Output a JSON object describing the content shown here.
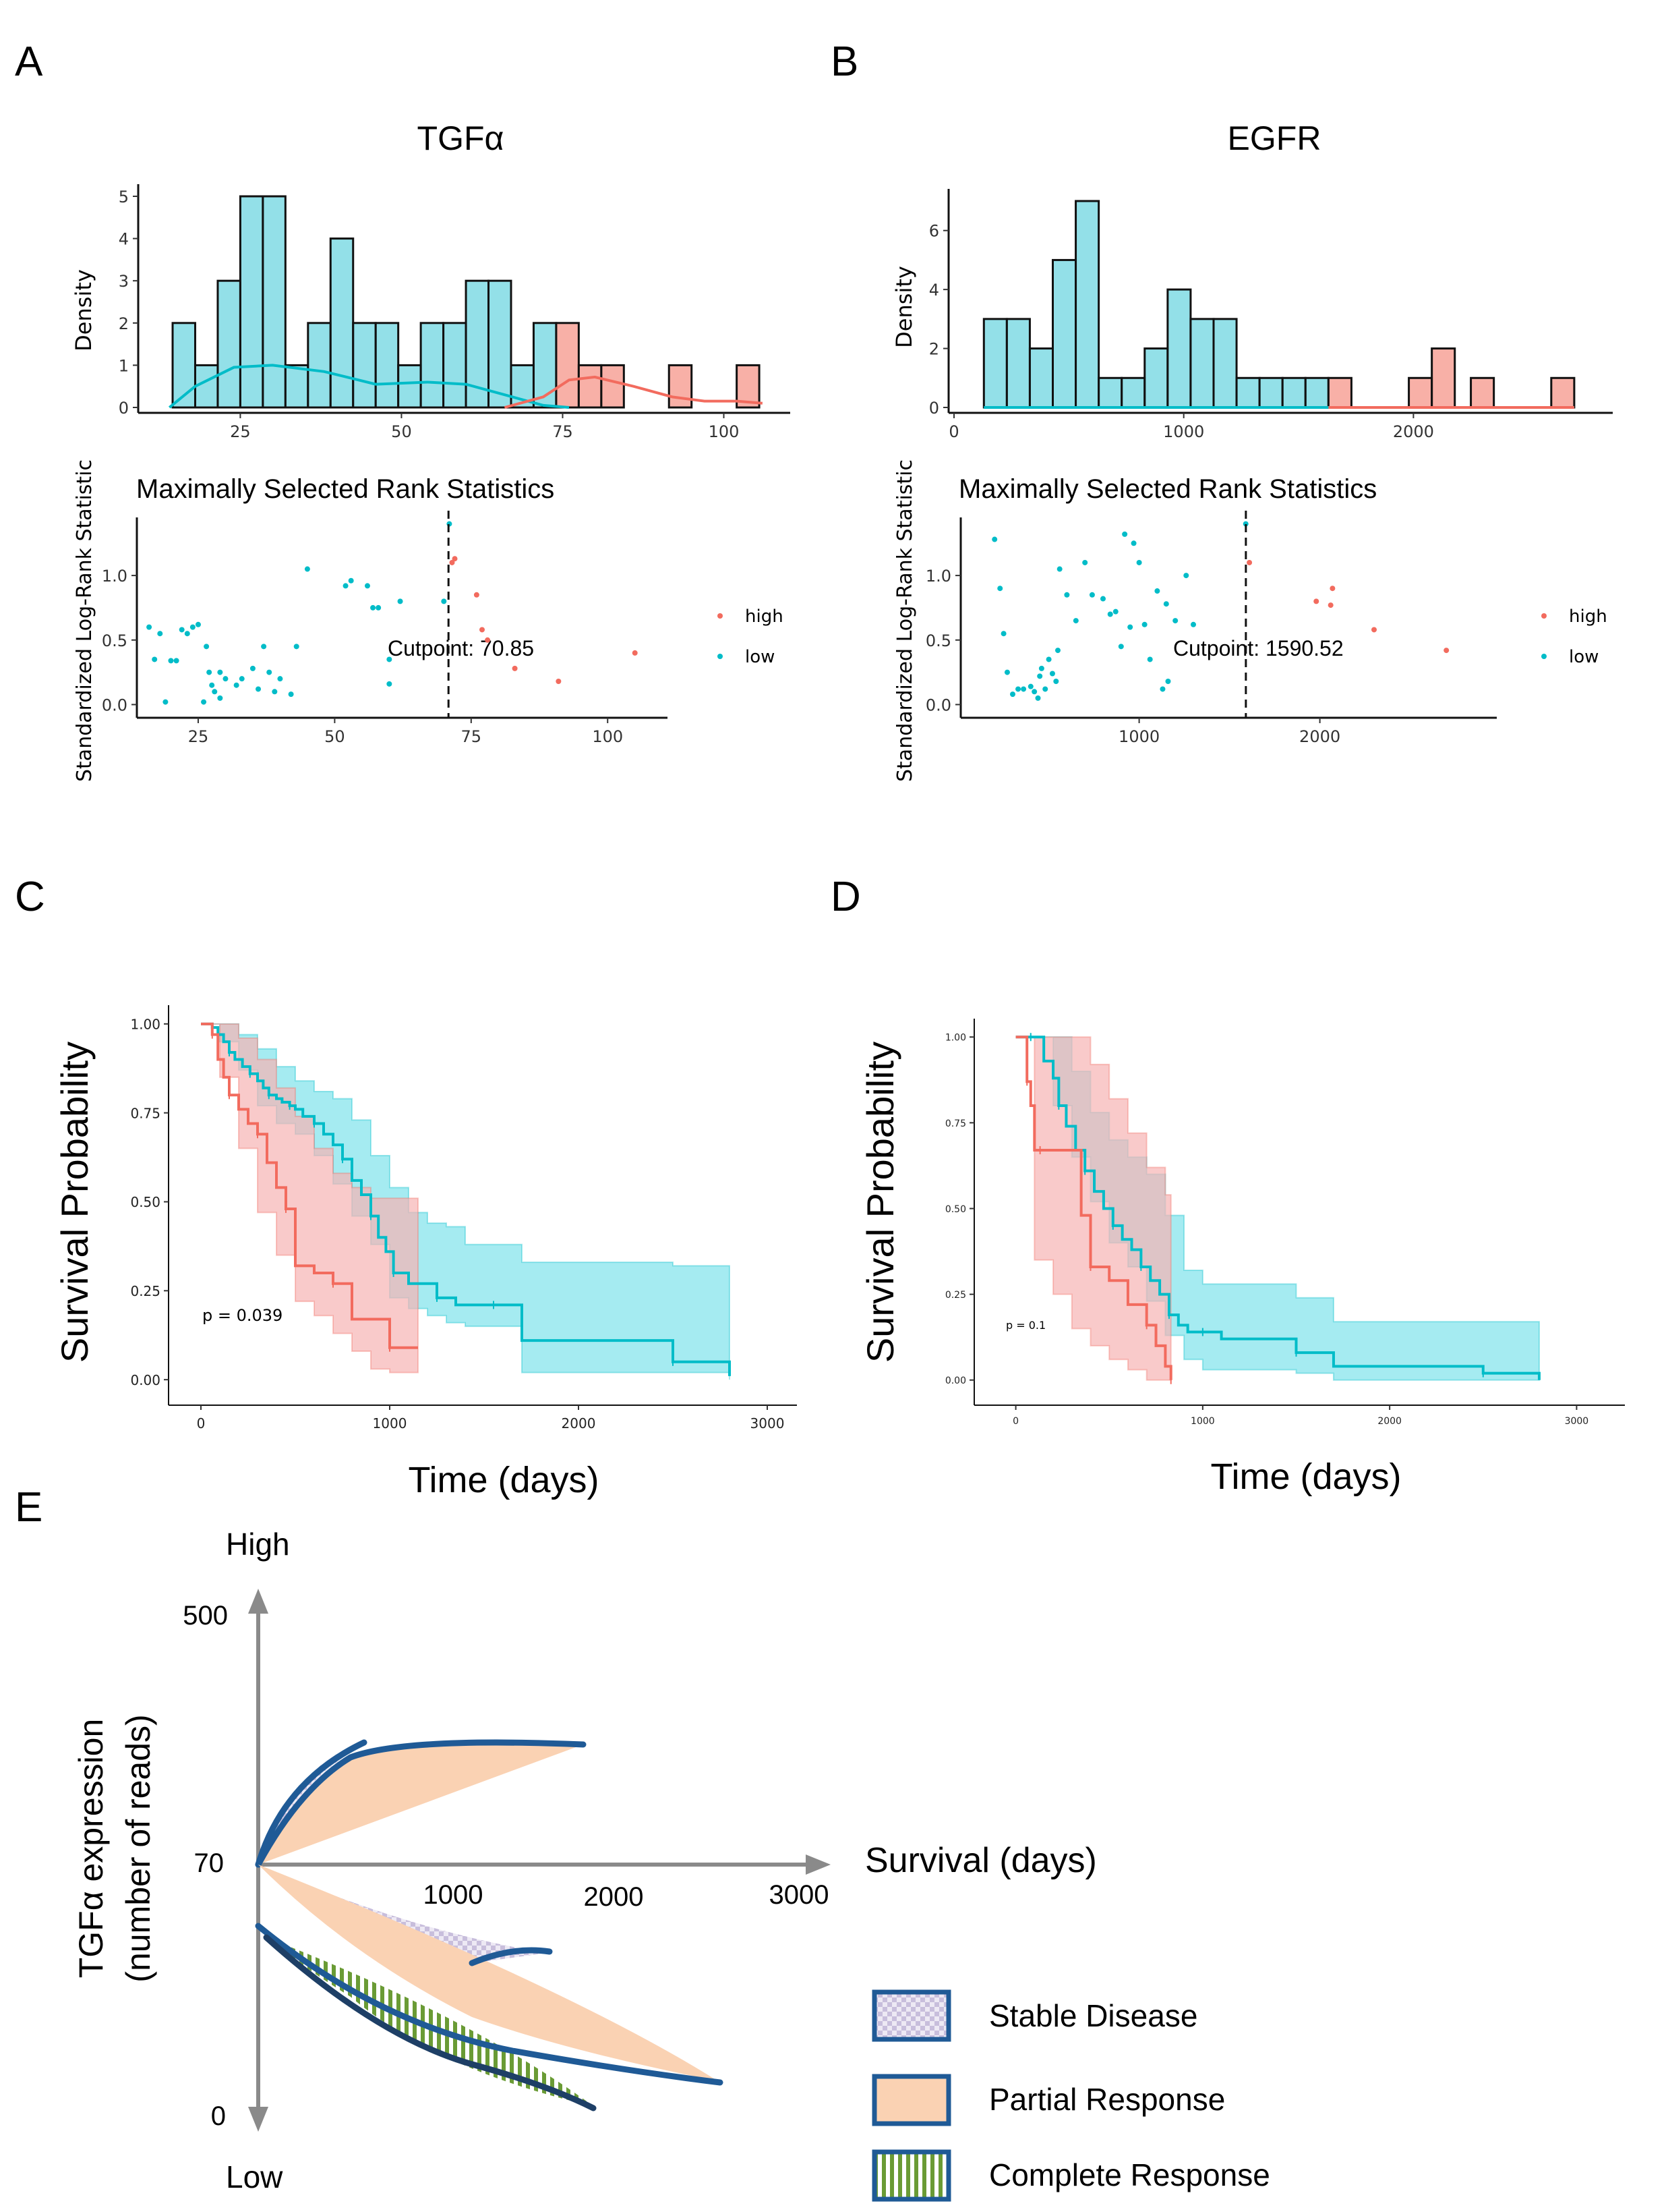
{
  "panel_labels": {
    "A": "A",
    "B": "B",
    "C": "C",
    "D": "D",
    "E": "E"
  },
  "colors": {
    "low": "#00bcc8",
    "low_fill": "#6fd5e0",
    "high": "#f26b5e",
    "high_fill": "#f5968a",
    "ci_low": "#8ee6ee",
    "ci_high": "#f7b4b4",
    "curve": "#1f5a96",
    "partial": "#fad2b3",
    "stable_checker": "#c8bedc",
    "complete_stripe": "#6a9b35"
  },
  "chart_data": [
    {
      "panel": "A",
      "type": "bar",
      "title": "TGFα",
      "ylabel": "Density",
      "xlim": [
        10,
        108
      ],
      "ylim": [
        0,
        5
      ],
      "xticks": [
        25,
        50,
        75,
        100
      ],
      "yticks": [
        0,
        1,
        2,
        3,
        4,
        5
      ],
      "bins_low": [
        [
          14.5,
          18,
          2
        ],
        [
          18,
          21.5,
          1
        ],
        [
          21.5,
          25,
          3
        ],
        [
          25,
          28.5,
          5
        ],
        [
          28.5,
          32,
          5
        ],
        [
          32,
          35.5,
          1
        ],
        [
          35.5,
          39,
          2
        ],
        [
          39,
          42.5,
          4
        ],
        [
          42.5,
          46,
          2
        ],
        [
          46,
          49.5,
          2
        ],
        [
          49.5,
          53,
          1
        ],
        [
          53,
          56.5,
          2
        ],
        [
          56.5,
          60,
          2
        ],
        [
          60,
          63.5,
          3
        ],
        [
          63.5,
          67,
          3
        ],
        [
          67,
          70.5,
          1
        ],
        [
          70.5,
          74,
          2
        ]
      ],
      "bins_high": [
        [
          74,
          77.5,
          2
        ],
        [
          77.5,
          81,
          1
        ],
        [
          81,
          84.5,
          1
        ],
        [
          91.5,
          95,
          1
        ],
        [
          102,
          105.5,
          1
        ]
      ],
      "density_low": [
        [
          14,
          0
        ],
        [
          18,
          0.5
        ],
        [
          24,
          0.95
        ],
        [
          30,
          1.0
        ],
        [
          38,
          0.85
        ],
        [
          46,
          0.55
        ],
        [
          54,
          0.6
        ],
        [
          60,
          0.55
        ],
        [
          66,
          0.3
        ],
        [
          72,
          0.05
        ],
        [
          76,
          0
        ]
      ],
      "density_high": [
        [
          66,
          0
        ],
        [
          72,
          0.25
        ],
        [
          76,
          0.65
        ],
        [
          80,
          0.72
        ],
        [
          86,
          0.5
        ],
        [
          92,
          0.25
        ],
        [
          97,
          0.15
        ],
        [
          102,
          0.15
        ],
        [
          106,
          0.1
        ]
      ]
    },
    {
      "panel": "A",
      "type": "scatter",
      "title": "Maximally Selected Rank Statistics",
      "ylabel": "Standardized Log-Rank Statistic",
      "xlim": [
        15,
        108
      ],
      "ylim": [
        -0.05,
        1.45
      ],
      "xticks": [
        25,
        50,
        75,
        100
      ],
      "yticks": [
        "0.0",
        "0.5",
        "1.0"
      ],
      "cutpoint": 70.85,
      "cutpoint_label": "Cutpoint: 70.85",
      "legend": [
        "high",
        "low"
      ],
      "low": [
        [
          16,
          0.6
        ],
        [
          17,
          0.35
        ],
        [
          18,
          0.55
        ],
        [
          19,
          0.02
        ],
        [
          20,
          0.34
        ],
        [
          21,
          0.34
        ],
        [
          22,
          0.58
        ],
        [
          23,
          0.55
        ],
        [
          24,
          0.6
        ],
        [
          25,
          0.62
        ],
        [
          26,
          0.02
        ],
        [
          26.5,
          0.45
        ],
        [
          27,
          0.25
        ],
        [
          27.5,
          0.15
        ],
        [
          28,
          0.1
        ],
        [
          29,
          0.05
        ],
        [
          29,
          0.25
        ],
        [
          30,
          0.2
        ],
        [
          32,
          0.15
        ],
        [
          33,
          0.2
        ],
        [
          35,
          0.28
        ],
        [
          36,
          0.12
        ],
        [
          37,
          0.45
        ],
        [
          38,
          0.25
        ],
        [
          39,
          0.1
        ],
        [
          40,
          0.2
        ],
        [
          42,
          0.08
        ],
        [
          43,
          0.45
        ],
        [
          45,
          1.05
        ],
        [
          52,
          0.92
        ],
        [
          53,
          0.96
        ],
        [
          56,
          0.92
        ],
        [
          57,
          0.75
        ],
        [
          58,
          0.75
        ],
        [
          60,
          0.35
        ],
        [
          60,
          0.16
        ],
        [
          62,
          0.8
        ],
        [
          70,
          0.8
        ],
        [
          71,
          1.4
        ]
      ],
      "high": [
        [
          71.5,
          1.1
        ],
        [
          72,
          1.13
        ],
        [
          76,
          0.85
        ],
        [
          77,
          0.58
        ],
        [
          78,
          0.5
        ],
        [
          83,
          0.28
        ],
        [
          91,
          0.18
        ],
        [
          105,
          0.4
        ]
      ]
    },
    {
      "panel": "B",
      "type": "bar",
      "title": "EGFR",
      "ylabel": "Density",
      "xlim": [
        0,
        2850
      ],
      "ylim": [
        0,
        7
      ],
      "xticks": [
        0,
        1000,
        2000
      ],
      "yticks": [
        0,
        2,
        4,
        6
      ],
      "bins_low": [
        [
          130,
          230,
          3
        ],
        [
          230,
          330,
          3
        ],
        [
          330,
          430,
          2
        ],
        [
          430,
          530,
          5
        ],
        [
          530,
          630,
          7
        ],
        [
          630,
          730,
          1
        ],
        [
          730,
          830,
          1
        ],
        [
          830,
          930,
          2
        ],
        [
          930,
          1030,
          4
        ],
        [
          1030,
          1130,
          3
        ],
        [
          1130,
          1230,
          3
        ],
        [
          1230,
          1330,
          1
        ],
        [
          1330,
          1430,
          1
        ],
        [
          1430,
          1530,
          1
        ],
        [
          1530,
          1630,
          1
        ]
      ],
      "bins_high": [
        [
          1630,
          1730,
          1
        ],
        [
          1980,
          2080,
          1
        ],
        [
          2080,
          2180,
          2
        ],
        [
          2250,
          2350,
          1
        ],
        [
          2600,
          2700,
          1
        ]
      ],
      "density_low": [
        [
          130,
          0
        ],
        [
          2700,
          0
        ]
      ],
      "density_high": [
        [
          1630,
          0
        ],
        [
          2700,
          0
        ]
      ]
    },
    {
      "panel": "B",
      "type": "scatter",
      "title": "Maximally Selected Rank Statistics",
      "ylabel": "Standardized Log-Rank Statistic",
      "xlim": [
        50,
        2800
      ],
      "ylim": [
        -0.05,
        1.45
      ],
      "xticks": [
        1000,
        2000
      ],
      "yticks": [
        "0.0",
        "0.5",
        "1.0"
      ],
      "cutpoint": 1590.52,
      "cutpoint_label": "Cutpoint: 1590.52",
      "legend": [
        "high",
        "low"
      ],
      "low": [
        [
          200,
          1.28
        ],
        [
          230,
          0.9
        ],
        [
          250,
          0.55
        ],
        [
          270,
          0.25
        ],
        [
          300,
          0.08
        ],
        [
          330,
          0.12
        ],
        [
          360,
          0.12
        ],
        [
          400,
          0.14
        ],
        [
          420,
          0.1
        ],
        [
          440,
          0.05
        ],
        [
          450,
          0.22
        ],
        [
          460,
          0.28
        ],
        [
          480,
          0.12
        ],
        [
          500,
          0.35
        ],
        [
          520,
          0.24
        ],
        [
          540,
          0.18
        ],
        [
          550,
          0.42
        ],
        [
          560,
          1.05
        ],
        [
          600,
          0.85
        ],
        [
          650,
          0.65
        ],
        [
          700,
          1.1
        ],
        [
          740,
          0.85
        ],
        [
          800,
          0.82
        ],
        [
          840,
          0.7
        ],
        [
          870,
          0.72
        ],
        [
          900,
          0.45
        ],
        [
          920,
          1.32
        ],
        [
          950,
          0.6
        ],
        [
          970,
          1.25
        ],
        [
          1000,
          1.1
        ],
        [
          1030,
          0.62
        ],
        [
          1060,
          0.35
        ],
        [
          1100,
          0.88
        ],
        [
          1130,
          0.12
        ],
        [
          1150,
          0.78
        ],
        [
          1160,
          0.18
        ],
        [
          1200,
          0.65
        ],
        [
          1260,
          1.0
        ],
        [
          1300,
          0.62
        ],
        [
          1590,
          1.4
        ]
      ],
      "high": [
        [
          1610,
          1.1
        ],
        [
          1980,
          0.8
        ],
        [
          2060,
          0.77
        ],
        [
          2070,
          0.9
        ],
        [
          2300,
          0.58
        ],
        [
          2700,
          0.42
        ]
      ]
    },
    {
      "panel": "C",
      "type": "line",
      "xlabel": "Time (days)",
      "ylabel": "Survival Probability",
      "xlim": [
        -100,
        3150
      ],
      "ylim": [
        -0.03,
        1.03
      ],
      "xticks": [
        0,
        1000,
        2000,
        3000
      ],
      "yticks": [
        "0.00",
        "0.25",
        "0.50",
        "0.75",
        "1.00"
      ],
      "annotation": "p = 0.039",
      "series": [
        {
          "name": "low",
          "x": [
            0,
            60,
            90,
            120,
            150,
            180,
            220,
            260,
            300,
            330,
            360,
            400,
            430,
            470,
            500,
            540,
            600,
            650,
            700,
            750,
            800,
            850,
            900,
            940,
            980,
            1020,
            1100,
            1150,
            1250,
            1350,
            1450,
            1550,
            1700,
            2000,
            2500,
            2800
          ],
          "y": [
            1,
            0.99,
            0.97,
            0.95,
            0.92,
            0.9,
            0.88,
            0.86,
            0.84,
            0.82,
            0.8,
            0.79,
            0.78,
            0.77,
            0.76,
            0.74,
            0.72,
            0.69,
            0.66,
            0.62,
            0.56,
            0.52,
            0.46,
            0.4,
            0.36,
            0.3,
            0.27,
            0.27,
            0.23,
            0.21,
            0.21,
            0.21,
            0.11,
            0.11,
            0.05,
            0.01
          ]
        },
        {
          "name": "high",
          "x": [
            0,
            60,
            90,
            120,
            150,
            200,
            250,
            300,
            350,
            400,
            450,
            500,
            600,
            700,
            800,
            900,
            1000,
            1150
          ],
          "y": [
            1,
            0.97,
            0.9,
            0.85,
            0.8,
            0.76,
            0.72,
            0.69,
            0.61,
            0.54,
            0.48,
            0.32,
            0.3,
            0.27,
            0.17,
            0.17,
            0.09,
            0.09
          ]
        }
      ],
      "ci": [
        {
          "name": "low",
          "x": [
            0,
            100,
            200,
            300,
            400,
            500,
            600,
            700,
            800,
            900,
            1000,
            1100,
            1200,
            1300,
            1400,
            1500,
            1600,
            1700,
            2000,
            2500,
            2800
          ],
          "upper": [
            1,
            1,
            0.97,
            0.93,
            0.88,
            0.84,
            0.81,
            0.79,
            0.73,
            0.63,
            0.54,
            0.47,
            0.44,
            0.43,
            0.38,
            0.38,
            0.38,
            0.33,
            0.33,
            0.32,
            0.32
          ],
          "lower": [
            1,
            0.95,
            0.87,
            0.77,
            0.72,
            0.69,
            0.63,
            0.55,
            0.46,
            0.38,
            0.23,
            0.2,
            0.18,
            0.16,
            0.15,
            0.15,
            0.15,
            0.02,
            0.02,
            0.02,
            0
          ]
        },
        {
          "name": "high",
          "x": [
            0,
            100,
            200,
            300,
            400,
            500,
            600,
            700,
            800,
            900,
            1000,
            1150
          ],
          "upper": [
            1,
            1,
            0.96,
            0.9,
            0.82,
            0.74,
            0.65,
            0.58,
            0.54,
            0.51,
            0.51,
            0.51
          ],
          "lower": [
            1,
            0.85,
            0.65,
            0.47,
            0.35,
            0.22,
            0.18,
            0.13,
            0.08,
            0.03,
            0.02,
            0.02
          ]
        }
      ]
    },
    {
      "panel": "D",
      "type": "line",
      "xlabel": "Time (days)",
      "ylabel": "Survival Probability",
      "xlim": [
        -150,
        3150
      ],
      "ylim": [
        -0.03,
        1.03
      ],
      "xticks": [
        0,
        1000,
        2000,
        3000
      ],
      "yticks": [
        "0.00",
        "0.25",
        "0.50",
        "0.75",
        "1.00"
      ],
      "annotation": "p = 0.1",
      "series": [
        {
          "name": "low",
          "x": [
            0,
            80,
            150,
            200,
            230,
            270,
            320,
            370,
            420,
            470,
            520,
            570,
            620,
            670,
            720,
            770,
            820,
            870,
            920,
            1000,
            1100,
            1300,
            1500,
            1700,
            2000,
            2500,
            2800
          ],
          "y": [
            1,
            1,
            0.93,
            0.88,
            0.8,
            0.74,
            0.67,
            0.61,
            0.55,
            0.5,
            0.45,
            0.41,
            0.38,
            0.33,
            0.29,
            0.25,
            0.19,
            0.16,
            0.14,
            0.14,
            0.12,
            0.12,
            0.08,
            0.04,
            0.04,
            0.02,
            0
          ]
        },
        {
          "name": "high",
          "x": [
            0,
            60,
            80,
            100,
            130,
            300,
            350,
            400,
            500,
            600,
            700,
            750,
            800,
            830
          ],
          "y": [
            1,
            0.87,
            0.8,
            0.67,
            0.67,
            0.67,
            0.48,
            0.33,
            0.29,
            0.22,
            0.16,
            0.1,
            0.04,
            0
          ]
        }
      ],
      "ci": [
        {
          "name": "low",
          "x": [
            0,
            100,
            200,
            300,
            400,
            500,
            600,
            700,
            800,
            900,
            1000,
            1200,
            1500,
            1700,
            2000,
            2500,
            2800
          ],
          "upper": [
            1,
            1,
            1,
            0.9,
            0.78,
            0.7,
            0.65,
            0.6,
            0.48,
            0.32,
            0.28,
            0.28,
            0.24,
            0.17,
            0.17,
            0.17,
            0.15
          ],
          "lower": [
            1,
            1,
            0.8,
            0.65,
            0.52,
            0.4,
            0.33,
            0.23,
            0.13,
            0.06,
            0.03,
            0.03,
            0.02,
            0,
            0,
            0,
            0
          ]
        },
        {
          "name": "high",
          "x": [
            0,
            100,
            200,
            300,
            400,
            500,
            600,
            700,
            800,
            830
          ],
          "upper": [
            1,
            1,
            1,
            1,
            0.92,
            0.82,
            0.72,
            0.62,
            0.54,
            0.54
          ],
          "lower": [
            1,
            0.35,
            0.25,
            0.15,
            0.1,
            0.06,
            0.03,
            0,
            0,
            0
          ]
        }
      ]
    }
  ],
  "panel_e": {
    "y_top_label": "High",
    "y_bottom_label": "Low",
    "y_title_line1": "TGFα expression",
    "y_title_line2": "(number of reads)",
    "y_ticks": [
      "500",
      "70",
      "0"
    ],
    "x_ticks": [
      "1000",
      "2000",
      "3000"
    ],
    "x_title": "Survival (days)",
    "legend": [
      {
        "label": "Stable Disease",
        "pattern": "checker"
      },
      {
        "label": "Partial Response",
        "pattern": "solid"
      },
      {
        "label": "Complete Response",
        "pattern": "stripes"
      }
    ]
  }
}
